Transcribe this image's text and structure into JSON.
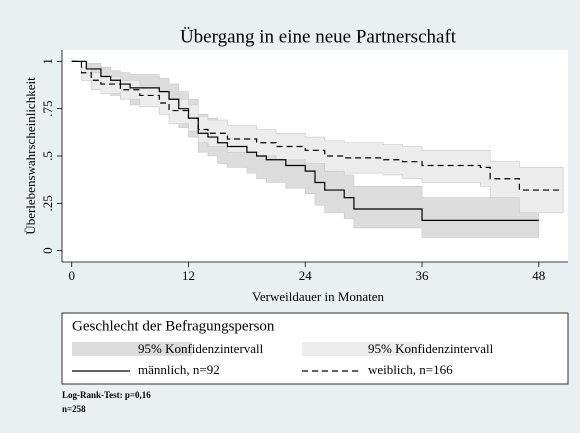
{
  "chart_data": {
    "type": "step",
    "title": "Übergang in eine neue Partnerschaft",
    "xlabel": "Verweildauer in Monaten",
    "ylabel": "Überlebenswahrscheinlichkeit",
    "xlim": [
      -1,
      51
    ],
    "ylim": [
      -0.06,
      1.06
    ],
    "xticks": [
      0,
      12,
      24,
      36,
      48
    ],
    "yticks": [
      0,
      {
        "value": 0.25,
        "label": ".25"
      },
      {
        "value": 0.5,
        "label": ".5"
      },
      {
        "value": 0.75,
        "label": ".75"
      },
      1
    ],
    "legend_title": "Geschlecht der Befragungsperson",
    "series": [
      {
        "name": "männlich, n=92",
        "color": "#000000",
        "dash": false,
        "ci_name": "95% Konfidenzintervall",
        "ci_color": "#dcdcdc",
        "x": [
          0,
          1.5,
          3,
          4,
          5,
          6,
          9,
          10,
          11,
          12,
          13,
          14,
          15,
          16,
          18,
          19,
          20,
          22,
          24,
          25,
          26,
          28,
          29,
          36,
          48
        ],
        "values": [
          1,
          0.96,
          0.92,
          0.9,
          0.88,
          0.86,
          0.84,
          0.8,
          0.75,
          0.7,
          0.62,
          0.6,
          0.57,
          0.55,
          0.52,
          0.5,
          0.48,
          0.45,
          0.42,
          0.36,
          0.32,
          0.28,
          0.22,
          0.16,
          0.16
        ],
        "lower": [
          1,
          0.9,
          0.85,
          0.82,
          0.8,
          0.77,
          0.75,
          0.7,
          0.65,
          0.6,
          0.52,
          0.5,
          0.46,
          0.44,
          0.41,
          0.38,
          0.36,
          0.33,
          0.3,
          0.24,
          0.2,
          0.17,
          0.12,
          0.07,
          0.07
        ],
        "upper": [
          1,
          0.99,
          0.97,
          0.95,
          0.94,
          0.93,
          0.91,
          0.88,
          0.84,
          0.8,
          0.72,
          0.7,
          0.67,
          0.65,
          0.63,
          0.61,
          0.59,
          0.56,
          0.54,
          0.48,
          0.45,
          0.4,
          0.34,
          0.28,
          0.28
        ]
      },
      {
        "name": "weiblich, n=166",
        "color": "#000000",
        "dash": true,
        "ci_name": "95% Konfidenzintervall",
        "ci_color": "#ececec",
        "x": [
          0,
          1,
          2,
          3,
          5,
          7,
          9,
          10,
          12,
          13,
          14,
          16,
          19,
          21,
          24,
          26,
          28,
          32,
          34,
          36,
          42,
          43,
          46,
          50.5
        ],
        "values": [
          1,
          0.94,
          0.9,
          0.88,
          0.85,
          0.82,
          0.78,
          0.74,
          0.7,
          0.64,
          0.62,
          0.59,
          0.57,
          0.55,
          0.53,
          0.5,
          0.49,
          0.48,
          0.47,
          0.45,
          0.44,
          0.38,
          0.32,
          0.32
        ],
        "lower": [
          1,
          0.9,
          0.85,
          0.83,
          0.8,
          0.76,
          0.72,
          0.67,
          0.63,
          0.57,
          0.55,
          0.52,
          0.5,
          0.48,
          0.46,
          0.42,
          0.41,
          0.4,
          0.38,
          0.36,
          0.34,
          0.28,
          0.2,
          0.2
        ],
        "upper": [
          1,
          0.97,
          0.94,
          0.92,
          0.9,
          0.87,
          0.84,
          0.8,
          0.77,
          0.71,
          0.69,
          0.66,
          0.64,
          0.62,
          0.6,
          0.58,
          0.57,
          0.56,
          0.55,
          0.53,
          0.53,
          0.47,
          0.44,
          0.44
        ]
      }
    ],
    "notes": [
      "Log-Rank-Test: p=0,16",
      "n=258"
    ]
  }
}
